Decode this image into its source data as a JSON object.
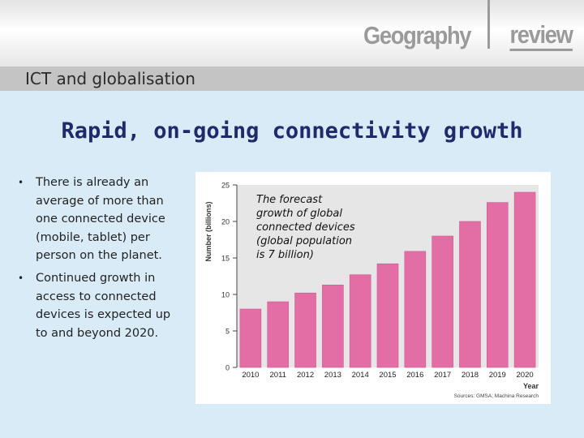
{
  "header": {
    "logo_left": "Geography",
    "logo_right": "review",
    "section_title": "ICT and globalisation"
  },
  "slide": {
    "title": "Rapid, on-going connectivity growth",
    "bullets": [
      "There is already an average of more than one connected device (mobile, tablet) per person on the planet.",
      "Continued growth in access to connected devices is expected up to and beyond 2020."
    ],
    "bullet_symbol": "•"
  },
  "annotation": "The forecast growth of global connected devices (global population is 7 billion)",
  "colors": {
    "bar": "#e36ea6",
    "bar_edge": "#d4588f",
    "plot_bg": "#e6e6e6",
    "title": "#1f2a6b",
    "background": "#d9ebf7"
  },
  "chart_data": {
    "type": "bar",
    "categories": [
      "2010",
      "2011",
      "2012",
      "2013",
      "2014",
      "2015",
      "2016",
      "2017",
      "2018",
      "2019",
      "2020"
    ],
    "values": [
      8,
      9,
      10.2,
      11.3,
      12.7,
      14.2,
      15.9,
      18,
      20,
      22.6,
      24
    ],
    "ylabel": "Number (billions)",
    "xlabel": "Year",
    "ylim": [
      0,
      25
    ],
    "yticks": [
      0,
      5,
      10,
      15,
      20,
      25
    ],
    "source": "Sources: GMSA; Machina Research",
    "grid": false
  }
}
